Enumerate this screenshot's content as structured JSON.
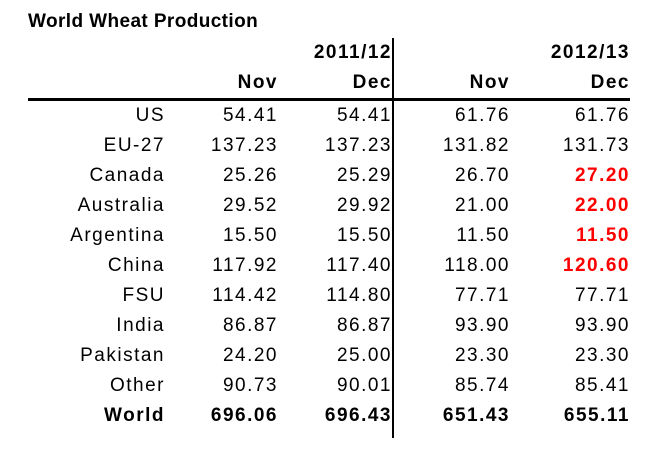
{
  "title": "World Wheat Production",
  "colors": {
    "text": "#000000",
    "highlight_red": "#ff0000",
    "background": "#ffffff"
  },
  "table": {
    "year_headers": [
      "2011/12",
      "2012/13"
    ],
    "month_headers": [
      "Nov",
      "Dec",
      "Nov",
      "Dec"
    ],
    "rows": [
      {
        "label": "US",
        "values": [
          "54.41",
          "54.41",
          "61.76",
          "61.76"
        ],
        "bold": false,
        "highlight_cols": []
      },
      {
        "label": "EU-27",
        "values": [
          "137.23",
          "137.23",
          "131.82",
          "131.73"
        ],
        "bold": false,
        "highlight_cols": []
      },
      {
        "label": "Canada",
        "values": [
          "25.26",
          "25.29",
          "26.70",
          "27.20"
        ],
        "bold": false,
        "highlight_cols": [
          3
        ]
      },
      {
        "label": "Australia",
        "values": [
          "29.52",
          "29.92",
          "21.00",
          "22.00"
        ],
        "bold": false,
        "highlight_cols": [
          3
        ]
      },
      {
        "label": "Argentina",
        "values": [
          "15.50",
          "15.50",
          "11.50",
          "11.50"
        ],
        "bold": false,
        "highlight_cols": [
          3
        ]
      },
      {
        "label": "China",
        "values": [
          "117.92",
          "117.40",
          "118.00",
          "120.60"
        ],
        "bold": false,
        "highlight_cols": [
          3
        ]
      },
      {
        "label": "FSU",
        "values": [
          "114.42",
          "114.80",
          "77.71",
          "77.71"
        ],
        "bold": false,
        "highlight_cols": []
      },
      {
        "label": "India",
        "values": [
          "86.87",
          "86.87",
          "93.90",
          "93.90"
        ],
        "bold": false,
        "highlight_cols": []
      },
      {
        "label": "Pakistan",
        "values": [
          "24.20",
          "25.00",
          "23.30",
          "23.30"
        ],
        "bold": false,
        "highlight_cols": []
      },
      {
        "label": "Other",
        "values": [
          "90.73",
          "90.01",
          "85.74",
          "85.41"
        ],
        "bold": false,
        "highlight_cols": []
      },
      {
        "label": "World",
        "values": [
          "696.06",
          "696.43",
          "651.43",
          "655.11"
        ],
        "bold": true,
        "highlight_cols": []
      }
    ]
  }
}
